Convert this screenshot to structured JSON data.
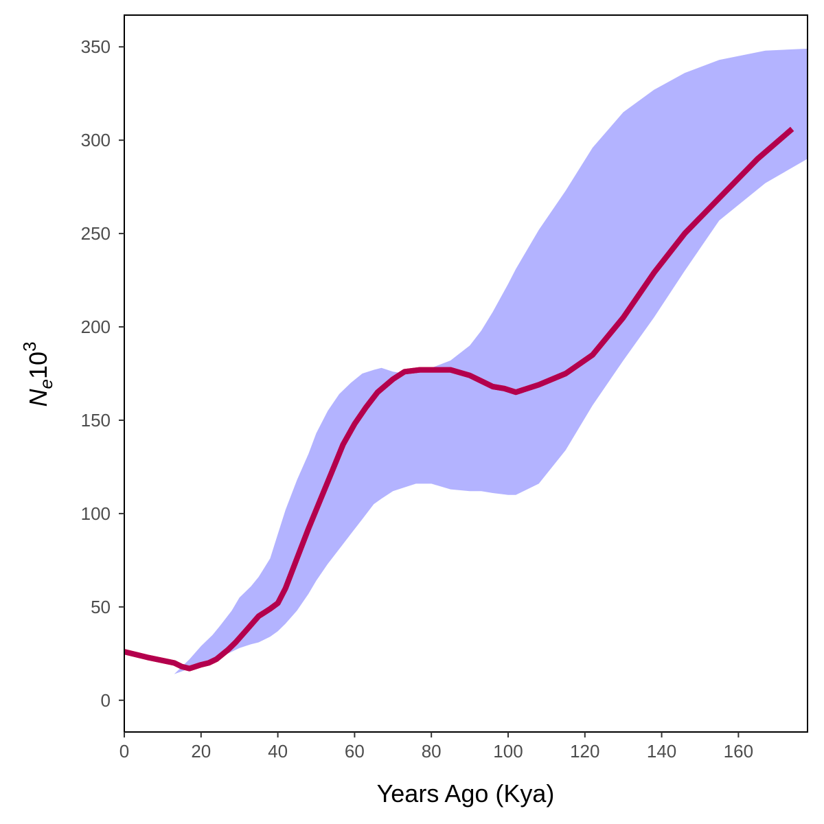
{
  "chart_data": {
    "type": "line",
    "xlabel": "Years Ago (Kya)",
    "ylabel": {
      "base": "N",
      "subscript": "e",
      "mult": "10",
      "superscript": "3"
    },
    "xlim": [
      0,
      178
    ],
    "ylim": [
      -17,
      367
    ],
    "x_ticks": [
      0,
      20,
      40,
      60,
      80,
      100,
      120,
      140,
      160
    ],
    "y_ticks": [
      0,
      50,
      100,
      150,
      200,
      250,
      300,
      350
    ],
    "grid": false,
    "legend": "none",
    "colors": {
      "band": "#b3b3ff",
      "line_red": "#ff0000",
      "line_overlay": "#b3004d",
      "axis": "#000000",
      "tick_label": "#4d4d4d"
    },
    "band": {
      "x": [
        0,
        7,
        13,
        17,
        20,
        23,
        25,
        28,
        30,
        33,
        35,
        38,
        40,
        42,
        45,
        48,
        50,
        53,
        56,
        59,
        62,
        65,
        67,
        70,
        73,
        76,
        80,
        85,
        90,
        93,
        96,
        100,
        102,
        108,
        115,
        122,
        130,
        138,
        146,
        155,
        167,
        178
      ],
      "lower": [
        14,
        13,
        14,
        17,
        18,
        21,
        23,
        26,
        28,
        30,
        31,
        34,
        37,
        41,
        48,
        57,
        64,
        73,
        81,
        89,
        97,
        105,
        108,
        112,
        114,
        116,
        116,
        113,
        112,
        112,
        111,
        110,
        110,
        116,
        134,
        158,
        182,
        205,
        230,
        257,
        277,
        290
      ],
      "upper": [
        14,
        13,
        14,
        22,
        29,
        35,
        40,
        48,
        55,
        61,
        66,
        76,
        89,
        102,
        118,
        132,
        143,
        155,
        164,
        170,
        175,
        177,
        178,
        176,
        175,
        177,
        178,
        182,
        190,
        198,
        208,
        223,
        231,
        252,
        273,
        296,
        315,
        327,
        336,
        343,
        348,
        349
      ]
    },
    "series": [
      {
        "x": [
          0,
          6,
          13,
          15,
          17,
          20,
          22,
          24,
          27,
          29,
          32,
          35,
          38,
          40,
          42,
          45,
          48,
          51,
          54,
          57,
          60,
          63,
          66,
          70,
          73,
          77,
          80,
          85,
          90,
          93,
          96,
          99,
          102,
          108,
          115,
          122,
          130,
          138,
          146,
          155,
          165,
          174
        ],
        "values": [
          26,
          23,
          20,
          18,
          17,
          19,
          20,
          22,
          27,
          31,
          38,
          45,
          49,
          52,
          60,
          76,
          92,
          107,
          122,
          137,
          148,
          157,
          165,
          172,
          176,
          177,
          177,
          177,
          174,
          171,
          168,
          167,
          165,
          169,
          175,
          185,
          205,
          229,
          250,
          269,
          290,
          306
        ]
      }
    ]
  }
}
